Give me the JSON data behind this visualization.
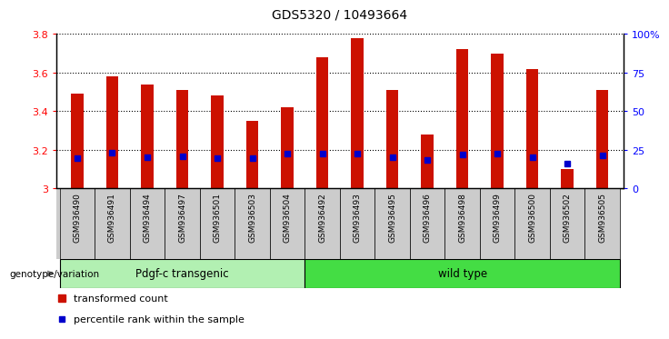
{
  "title": "GDS5320 / 10493664",
  "samples": [
    "GSM936490",
    "GSM936491",
    "GSM936494",
    "GSM936497",
    "GSM936501",
    "GSM936503",
    "GSM936504",
    "GSM936492",
    "GSM936493",
    "GSM936495",
    "GSM936496",
    "GSM936498",
    "GSM936499",
    "GSM936500",
    "GSM936502",
    "GSM936505"
  ],
  "red_values": [
    3.49,
    3.58,
    3.54,
    3.51,
    3.48,
    3.35,
    3.42,
    3.68,
    3.78,
    3.51,
    3.28,
    3.72,
    3.7,
    3.62,
    3.1,
    3.51
  ],
  "blue_values": [
    3.155,
    3.185,
    3.16,
    3.165,
    3.158,
    3.158,
    3.178,
    3.178,
    3.178,
    3.163,
    3.148,
    3.175,
    3.178,
    3.163,
    3.128,
    3.17
  ],
  "groups": [
    "Pdgf-c transgenic",
    "wild type"
  ],
  "group_split": 7,
  "group1_color": "#b2f0b2",
  "group2_color": "#44dd44",
  "bar_color": "#cc1100",
  "blue_color": "#0000cc",
  "ymin": 3.0,
  "ymax": 3.8,
  "y_ticks": [
    3.0,
    3.2,
    3.4,
    3.6,
    3.8
  ],
  "y_tick_labels": [
    "3",
    "3.2",
    "3.4",
    "3.6",
    "3.8"
  ],
  "right_yticks": [
    0,
    25,
    50,
    75,
    100
  ],
  "right_yticklabels": [
    "0",
    "25",
    "50",
    "75",
    "100%"
  ],
  "xlabel_genotype": "genotype/variation",
  "legend_red": "transformed count",
  "legend_blue": "percentile rank within the sample",
  "label_bg": "#cccccc",
  "plot_bg": "#ffffff"
}
